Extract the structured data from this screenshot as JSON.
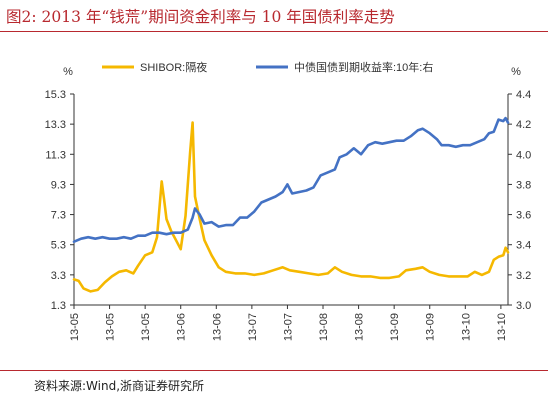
{
  "figure": {
    "title": "图2:  2013 年“钱荒”期间资金利率与 10 年国债利率走势",
    "source": "资料来源:Wind,浙商证券研究所"
  },
  "chart_data": {
    "type": "line",
    "title": "",
    "xlabel": "",
    "ylabel_left": "%",
    "ylabel_right": "%",
    "ylim_left": [
      1.3,
      15.3
    ],
    "ylim_right": [
      3.0,
      4.4
    ],
    "yticks_left": [
      "1.3",
      "3.3",
      "5.3",
      "7.3",
      "9.3",
      "11.3",
      "13.3",
      "15.3"
    ],
    "yticks_right": [
      "3.0",
      "3.2",
      "3.4",
      "3.6",
      "3.8",
      "4.0",
      "4.2",
      "4.4"
    ],
    "x_range": [
      "2013-05-01",
      "2013-10-31"
    ],
    "x_ticks": [
      {
        "date": "2013-05-01",
        "label": "13-05"
      },
      {
        "date": "2013-05-16",
        "label": "13-05"
      },
      {
        "date": "2013-05-31",
        "label": "13-05"
      },
      {
        "date": "2013-06-15",
        "label": "13-06"
      },
      {
        "date": "2013-06-30",
        "label": "13-06"
      },
      {
        "date": "2013-07-15",
        "label": "13-07"
      },
      {
        "date": "2013-07-30",
        "label": "13-07"
      },
      {
        "date": "2013-08-14",
        "label": "13-08"
      },
      {
        "date": "2013-08-29",
        "label": "13-08"
      },
      {
        "date": "2013-09-13",
        "label": "13-09"
      },
      {
        "date": "2013-09-28",
        "label": "13-09"
      },
      {
        "date": "2013-10-13",
        "label": "13-10"
      },
      {
        "date": "2013-10-28",
        "label": "13-10"
      }
    ],
    "legend_position": "top",
    "grid": false,
    "series": [
      {
        "name": "SHIBOR:隔夜",
        "axis": "left",
        "color": "#f5b800",
        "points": [
          [
            "2013-05-01",
            3.0
          ],
          [
            "2013-05-03",
            2.9
          ],
          [
            "2013-05-05",
            2.4
          ],
          [
            "2013-05-08",
            2.2
          ],
          [
            "2013-05-11",
            2.3
          ],
          [
            "2013-05-14",
            2.8
          ],
          [
            "2013-05-17",
            3.2
          ],
          [
            "2013-05-20",
            3.5
          ],
          [
            "2013-05-23",
            3.6
          ],
          [
            "2013-05-26",
            3.4
          ],
          [
            "2013-05-28",
            3.9
          ],
          [
            "2013-05-31",
            4.6
          ],
          [
            "2013-06-03",
            4.8
          ],
          [
            "2013-06-05",
            5.8
          ],
          [
            "2013-06-07",
            9.5
          ],
          [
            "2013-06-08",
            8.3
          ],
          [
            "2013-06-09",
            7.0
          ],
          [
            "2013-06-11",
            6.2
          ],
          [
            "2013-06-13",
            5.6
          ],
          [
            "2013-06-15",
            5.0
          ],
          [
            "2013-06-17",
            7.2
          ],
          [
            "2013-06-19",
            11.5
          ],
          [
            "2013-06-20",
            13.4
          ],
          [
            "2013-06-21",
            8.5
          ],
          [
            "2013-06-23",
            7.0
          ],
          [
            "2013-06-25",
            5.6
          ],
          [
            "2013-06-28",
            4.6
          ],
          [
            "2013-07-01",
            3.8
          ],
          [
            "2013-07-04",
            3.5
          ],
          [
            "2013-07-08",
            3.4
          ],
          [
            "2013-07-12",
            3.4
          ],
          [
            "2013-07-16",
            3.3
          ],
          [
            "2013-07-20",
            3.4
          ],
          [
            "2013-07-24",
            3.6
          ],
          [
            "2013-07-28",
            3.8
          ],
          [
            "2013-07-31",
            3.6
          ],
          [
            "2013-08-04",
            3.5
          ],
          [
            "2013-08-08",
            3.4
          ],
          [
            "2013-08-12",
            3.3
          ],
          [
            "2013-08-16",
            3.4
          ],
          [
            "2013-08-19",
            3.8
          ],
          [
            "2013-08-22",
            3.5
          ],
          [
            "2013-08-26",
            3.3
          ],
          [
            "2013-08-30",
            3.2
          ],
          [
            "2013-09-03",
            3.2
          ],
          [
            "2013-09-07",
            3.1
          ],
          [
            "2013-09-11",
            3.1
          ],
          [
            "2013-09-15",
            3.2
          ],
          [
            "2013-09-18",
            3.6
          ],
          [
            "2013-09-22",
            3.7
          ],
          [
            "2013-09-25",
            3.8
          ],
          [
            "2013-09-28",
            3.5
          ],
          [
            "2013-10-02",
            3.3
          ],
          [
            "2013-10-06",
            3.2
          ],
          [
            "2013-10-10",
            3.2
          ],
          [
            "2013-10-14",
            3.2
          ],
          [
            "2013-10-17",
            3.5
          ],
          [
            "2013-10-20",
            3.3
          ],
          [
            "2013-10-23",
            3.5
          ],
          [
            "2013-10-25",
            4.3
          ],
          [
            "2013-10-27",
            4.5
          ],
          [
            "2013-10-29",
            4.6
          ],
          [
            "2013-10-30",
            5.1
          ],
          [
            "2013-10-31",
            4.8
          ]
        ]
      },
      {
        "name": "中债国债到期收益率:10年:右",
        "axis": "right",
        "color": "#4472c4",
        "points": [
          [
            "2013-05-01",
            3.42
          ],
          [
            "2013-05-04",
            3.44
          ],
          [
            "2013-05-07",
            3.45
          ],
          [
            "2013-05-10",
            3.44
          ],
          [
            "2013-05-13",
            3.45
          ],
          [
            "2013-05-16",
            3.44
          ],
          [
            "2013-05-19",
            3.44
          ],
          [
            "2013-05-22",
            3.45
          ],
          [
            "2013-05-25",
            3.44
          ],
          [
            "2013-05-28",
            3.46
          ],
          [
            "2013-05-31",
            3.46
          ],
          [
            "2013-06-03",
            3.48
          ],
          [
            "2013-06-06",
            3.48
          ],
          [
            "2013-06-09",
            3.47
          ],
          [
            "2013-06-12",
            3.48
          ],
          [
            "2013-06-15",
            3.48
          ],
          [
            "2013-06-18",
            3.5
          ],
          [
            "2013-06-20",
            3.58
          ],
          [
            "2013-06-21",
            3.64
          ],
          [
            "2013-06-23",
            3.6
          ],
          [
            "2013-06-25",
            3.54
          ],
          [
            "2013-06-28",
            3.55
          ],
          [
            "2013-07-01",
            3.52
          ],
          [
            "2013-07-04",
            3.53
          ],
          [
            "2013-07-07",
            3.53
          ],
          [
            "2013-07-10",
            3.58
          ],
          [
            "2013-07-13",
            3.58
          ],
          [
            "2013-07-16",
            3.62
          ],
          [
            "2013-07-19",
            3.68
          ],
          [
            "2013-07-22",
            3.7
          ],
          [
            "2013-07-25",
            3.72
          ],
          [
            "2013-07-28",
            3.75
          ],
          [
            "2013-07-30",
            3.8
          ],
          [
            "2013-08-01",
            3.74
          ],
          [
            "2013-08-04",
            3.75
          ],
          [
            "2013-08-07",
            3.76
          ],
          [
            "2013-08-10",
            3.78
          ],
          [
            "2013-08-13",
            3.86
          ],
          [
            "2013-08-16",
            3.88
          ],
          [
            "2013-08-19",
            3.9
          ],
          [
            "2013-08-21",
            3.98
          ],
          [
            "2013-08-24",
            4.0
          ],
          [
            "2013-08-27",
            4.04
          ],
          [
            "2013-08-30",
            4.0
          ],
          [
            "2013-09-02",
            4.06
          ],
          [
            "2013-09-05",
            4.08
          ],
          [
            "2013-09-08",
            4.07
          ],
          [
            "2013-09-11",
            4.08
          ],
          [
            "2013-09-14",
            4.09
          ],
          [
            "2013-09-17",
            4.09
          ],
          [
            "2013-09-20",
            4.12
          ],
          [
            "2013-09-23",
            4.16
          ],
          [
            "2013-09-25",
            4.17
          ],
          [
            "2013-09-28",
            4.14
          ],
          [
            "2013-10-01",
            4.1
          ],
          [
            "2013-10-03",
            4.06
          ],
          [
            "2013-10-06",
            4.06
          ],
          [
            "2013-10-09",
            4.05
          ],
          [
            "2013-10-12",
            4.06
          ],
          [
            "2013-10-15",
            4.06
          ],
          [
            "2013-10-18",
            4.08
          ],
          [
            "2013-10-21",
            4.1
          ],
          [
            "2013-10-23",
            4.14
          ],
          [
            "2013-10-25",
            4.15
          ],
          [
            "2013-10-27",
            4.23
          ],
          [
            "2013-10-29",
            4.22
          ],
          [
            "2013-10-30",
            4.24
          ],
          [
            "2013-10-31",
            4.21
          ]
        ]
      }
    ]
  }
}
